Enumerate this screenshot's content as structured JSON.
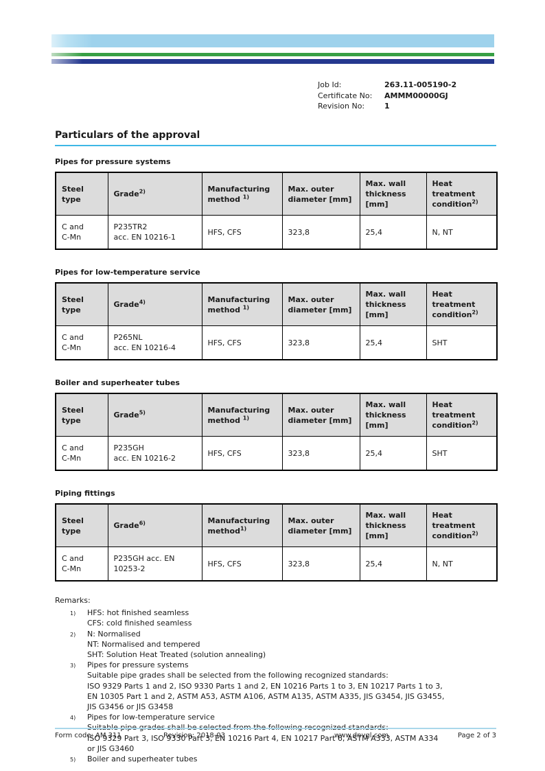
{
  "colors": {
    "bar_light_blue": "#9ed2ec",
    "bar_green": "#379f44",
    "bar_dark_blue": "#25388f",
    "heading_underline": "#3eb7e5",
    "footer_line": "#aad7ea",
    "table_header_bg": "#dcdcdc"
  },
  "meta": {
    "job_id_label": "Job Id:",
    "job_id_value": "263.11-005190-2",
    "certificate_no_label": "Certificate No:",
    "certificate_no_value": "AMMM00000GJ",
    "revision_no_label": "Revision No:",
    "revision_no_value": "1"
  },
  "heading": "Particulars of the approval",
  "sections": [
    {
      "title": "Pipes for pressure systems",
      "columns": [
        {
          "text": "Steel type",
          "sup": ""
        },
        {
          "text": "Grade",
          "sup": "2)"
        },
        {
          "text": "Manufacturing method ",
          "sup": "1)"
        },
        {
          "text": "Max. outer diameter [mm]",
          "sup": ""
        },
        {
          "text": "Max. wall thickness [mm]",
          "sup": ""
        },
        {
          "text": "Heat treatment condition",
          "sup": "2)"
        }
      ],
      "rows": [
        [
          [
            "C and",
            "C-Mn"
          ],
          [
            "P235TR2",
            "acc. EN 10216-1"
          ],
          [
            "HFS, CFS"
          ],
          [
            "323,8"
          ],
          [
            "25,4"
          ],
          [
            "N, NT"
          ]
        ]
      ]
    },
    {
      "title": "Pipes for low-temperature service",
      "columns": [
        {
          "text": "Steel type",
          "sup": ""
        },
        {
          "text": "Grade",
          "sup": "4)"
        },
        {
          "text": "Manufacturing method ",
          "sup": "1)"
        },
        {
          "text": "Max. outer diameter [mm]",
          "sup": ""
        },
        {
          "text": "Max. wall thickness [mm]",
          "sup": ""
        },
        {
          "text": "Heat treatment condition",
          "sup": "2)"
        }
      ],
      "rows": [
        [
          [
            "C and",
            "C-Mn"
          ],
          [
            "P265NL",
            "acc. EN 10216-4"
          ],
          [
            "HFS, CFS"
          ],
          [
            "323,8"
          ],
          [
            "25,4"
          ],
          [
            "SHT"
          ]
        ]
      ]
    },
    {
      "title": "Boiler and superheater tubes",
      "columns": [
        {
          "text": "Steel type",
          "sup": ""
        },
        {
          "text": "Grade",
          "sup": "5)"
        },
        {
          "text": "Manufacturing method ",
          "sup": "1)"
        },
        {
          "text": "Max. outer diameter [mm]",
          "sup": ""
        },
        {
          "text": "Max. wall thickness [mm]",
          "sup": ""
        },
        {
          "text": "Heat treatment condition",
          "sup": "2)"
        }
      ],
      "rows": [
        [
          [
            "C and",
            "C-Mn"
          ],
          [
            "P235GH",
            "acc. EN 10216-2"
          ],
          [
            "HFS, CFS"
          ],
          [
            "323,8"
          ],
          [
            "25,4"
          ],
          [
            "SHT"
          ]
        ]
      ]
    },
    {
      "title": "Piping fittings",
      "columns": [
        {
          "text": "Steel type",
          "sup": ""
        },
        {
          "text": "Grade",
          "sup": "6)"
        },
        {
          "text": "Manufacturing method",
          "sup": "1)"
        },
        {
          "text": "Max. outer diameter [mm]",
          "sup": ""
        },
        {
          "text": "Max. wall thickness [mm]",
          "sup": ""
        },
        {
          "text": "Heat treatment condition",
          "sup": "2)"
        }
      ],
      "rows": [
        [
          [
            "C and",
            "C-Mn"
          ],
          [
            "P235GH acc. EN",
            "10253-2"
          ],
          [
            "HFS, CFS"
          ],
          [
            "323,8"
          ],
          [
            "25,4"
          ],
          [
            "N, NT"
          ]
        ]
      ]
    }
  ],
  "remarks": {
    "title": "Remarks:",
    "items": [
      {
        "num": "1)",
        "lines": [
          "HFS: hot finished seamless",
          "CFS: cold finished seamless"
        ]
      },
      {
        "num": "2)",
        "lines": [
          "N: Normalised",
          "NT: Normalised and tempered",
          "SHT: Solution Heat Treated (solution annealing)"
        ]
      },
      {
        "num": "3)",
        "lines": [
          "Pipes for pressure systems",
          "Suitable pipe grades shall be selected from the following recognized standards:",
          "ISO 9329 Parts 1 and 2, ISO 9330 Parts 1 and 2, EN 10216 Parts 1 to 3, EN 10217 Parts 1 to 3,",
          "EN 10305 Part 1 and 2, ASTM A53, ASTM A106, ASTM A135, ASTM A335, JIS G3454, JIS G3455,",
          "JIS G3456 or JIS G3458"
        ]
      },
      {
        "num": "4)",
        "lines": [
          "Pipes for low-temperature service",
          "Suitable pipe grades shall be selected from the following recognized standards:",
          "ISO 9329 Part 3, ISO 9330 Part 3, EN 10216 Part 4, EN 10217 Part 6, ASTM A333, ASTM A334",
          "or JIS G3460"
        ]
      },
      {
        "num": "5)",
        "lines": [
          "Boiler and superheater tubes"
        ]
      }
    ]
  },
  "footer": {
    "form_code": "Form code: AM 311",
    "revision": "Revision: 2018-03",
    "website": "www.dnvgl.com",
    "page": "Page 2 of 3"
  }
}
